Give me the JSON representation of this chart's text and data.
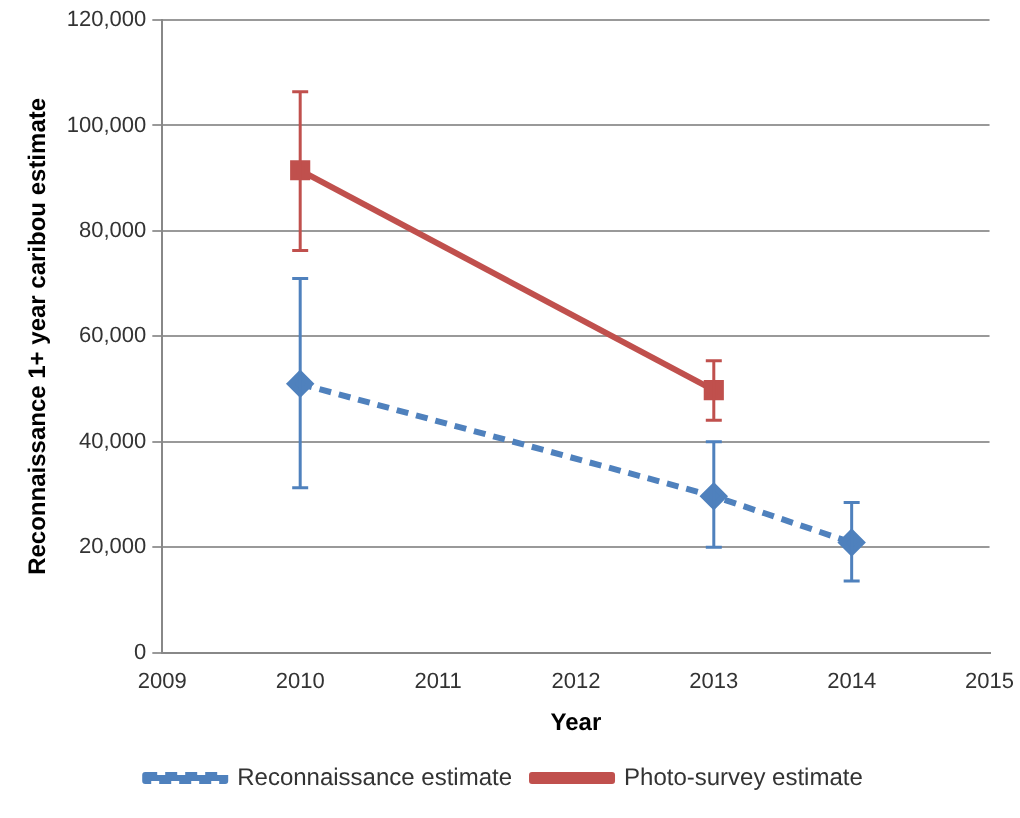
{
  "chart_data": {
    "type": "line",
    "xlabel": "Year",
    "ylabel": "Reconnaissance 1+ year caribou estimate",
    "series": [
      {
        "name": "Reconnaissance estimate",
        "color": "#4f81bd",
        "x": [
          2010,
          2013,
          2014
        ],
        "values": [
          51000,
          29700,
          20900
        ],
        "errors": [
          [
            31300,
            71000
          ],
          [
            20000,
            40000
          ],
          [
            13600,
            28500
          ]
        ],
        "marker": "diamond",
        "line_style": "dashed"
      },
      {
        "name": "Photo-survey estimate",
        "color": "#c0504d",
        "x": [
          2010,
          2013
        ],
        "values": [
          91500,
          49800
        ],
        "errors": [
          [
            76300,
            106400
          ],
          [
            44100,
            55400
          ]
        ],
        "marker": "square",
        "line_style": "solid"
      }
    ],
    "xlim": [
      2009,
      2015
    ],
    "xticks": [
      2009,
      2010,
      2011,
      2012,
      2013,
      2014,
      2015
    ],
    "ylim": [
      0,
      120000
    ],
    "yticks": [
      0,
      {
        "value": 20000,
        "label": "20,000"
      },
      {
        "value": 40000,
        "label": "40,000"
      },
      {
        "value": 60000,
        "label": "60,000"
      },
      {
        "value": 80000,
        "label": "80,000"
      },
      {
        "value": 100000,
        "label": "100,000"
      },
      {
        "value": 120000,
        "label": "120,000"
      }
    ],
    "grid": "y",
    "legend": "bottom"
  }
}
